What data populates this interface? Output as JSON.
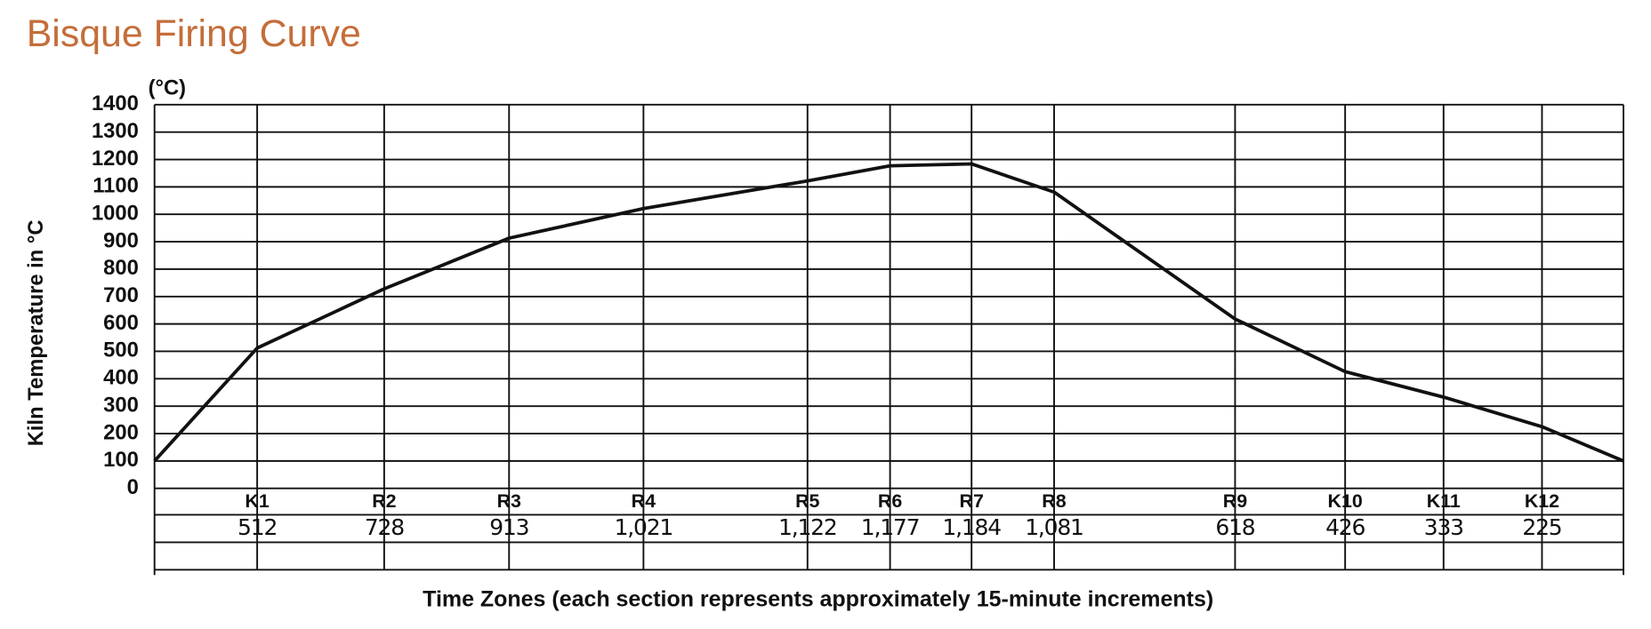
{
  "chart_data": {
    "type": "line",
    "title": "Bisque Firing Curve",
    "unit_label": "(°C)",
    "y_label": "Kiln Temperature in °C",
    "x_label": "Time Zones (each section represents approximately 15-minute increments)",
    "categories": [
      null,
      "K1",
      "R2",
      "R3",
      "R4",
      "R5",
      "R6",
      "R7",
      "R8",
      "R9",
      "K10",
      "K11",
      "K12",
      null
    ],
    "values": [
      100,
      512,
      728,
      913,
      1021,
      1122,
      1177,
      1184,
      1081,
      618,
      426,
      333,
      225,
      100
    ],
    "value_labels": [
      null,
      "512",
      "728",
      "913",
      "1,021",
      "1,122",
      "1,177",
      "1,184",
      "1,081",
      "618",
      "426",
      "333",
      "225",
      null
    ],
    "color": "#111111",
    "title_color": "#c46d3a",
    "ylim": [
      0,
      1400
    ],
    "yticks": [
      0,
      100,
      200,
      300,
      400,
      500,
      600,
      700,
      800,
      900,
      1000,
      1100,
      1200,
      1300,
      1400
    ],
    "grid": true
  }
}
